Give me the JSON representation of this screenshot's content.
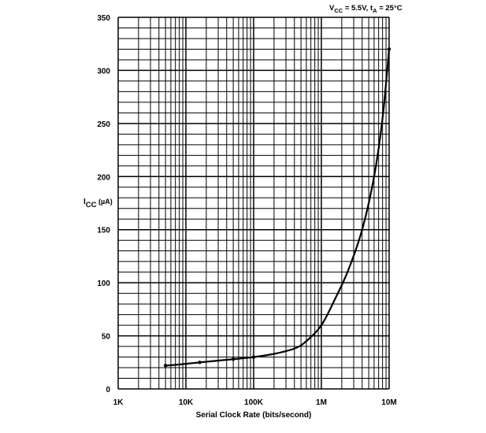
{
  "chart_data": {
    "type": "line",
    "conditions": {
      "vcc": {
        "main": "V",
        "sub": "CC",
        "value": " = 5.5V, "
      },
      "ta": {
        "main": "t",
        "sub": "A",
        "value": " = 25°C"
      }
    },
    "ylabel": {
      "main": "I",
      "sub": "CC",
      "unit": " (µA)"
    },
    "xlabel": "Serial Clock Rate (bits/second)",
    "x_scale": "log",
    "xlim": [
      1000,
      10000000
    ],
    "ylim": [
      0,
      350
    ],
    "x_ticks": [
      {
        "value": 1000,
        "label": "1K"
      },
      {
        "value": 10000,
        "label": "10K"
      },
      {
        "value": 100000,
        "label": "100K"
      },
      {
        "value": 1000000,
        "label": "1M"
      },
      {
        "value": 10000000,
        "label": "10M"
      }
    ],
    "y_ticks": [
      {
        "value": 0,
        "label": "0"
      },
      {
        "value": 50,
        "label": "50"
      },
      {
        "value": 100,
        "label": "100"
      },
      {
        "value": 150,
        "label": "150"
      },
      {
        "value": 200,
        "label": "200"
      },
      {
        "value": 250,
        "label": "250"
      },
      {
        "value": 300,
        "label": "300"
      },
      {
        "value": 350,
        "label": "350"
      }
    ],
    "y_minor_step": 10,
    "grid": true,
    "series": [
      {
        "x": [
          5000,
          8000,
          16000,
          50000,
          100000,
          200000,
          400000,
          600000,
          1000000,
          1600000,
          2500000,
          4000000,
          6000000,
          8000000,
          10000000
        ],
        "y": [
          22,
          23,
          25,
          28,
          30,
          33,
          38,
          45,
          60,
          85,
          112,
          150,
          200,
          255,
          320
        ]
      }
    ],
    "markers_at": [
      5000,
      16000,
      50000,
      100000,
      10000000
    ]
  }
}
